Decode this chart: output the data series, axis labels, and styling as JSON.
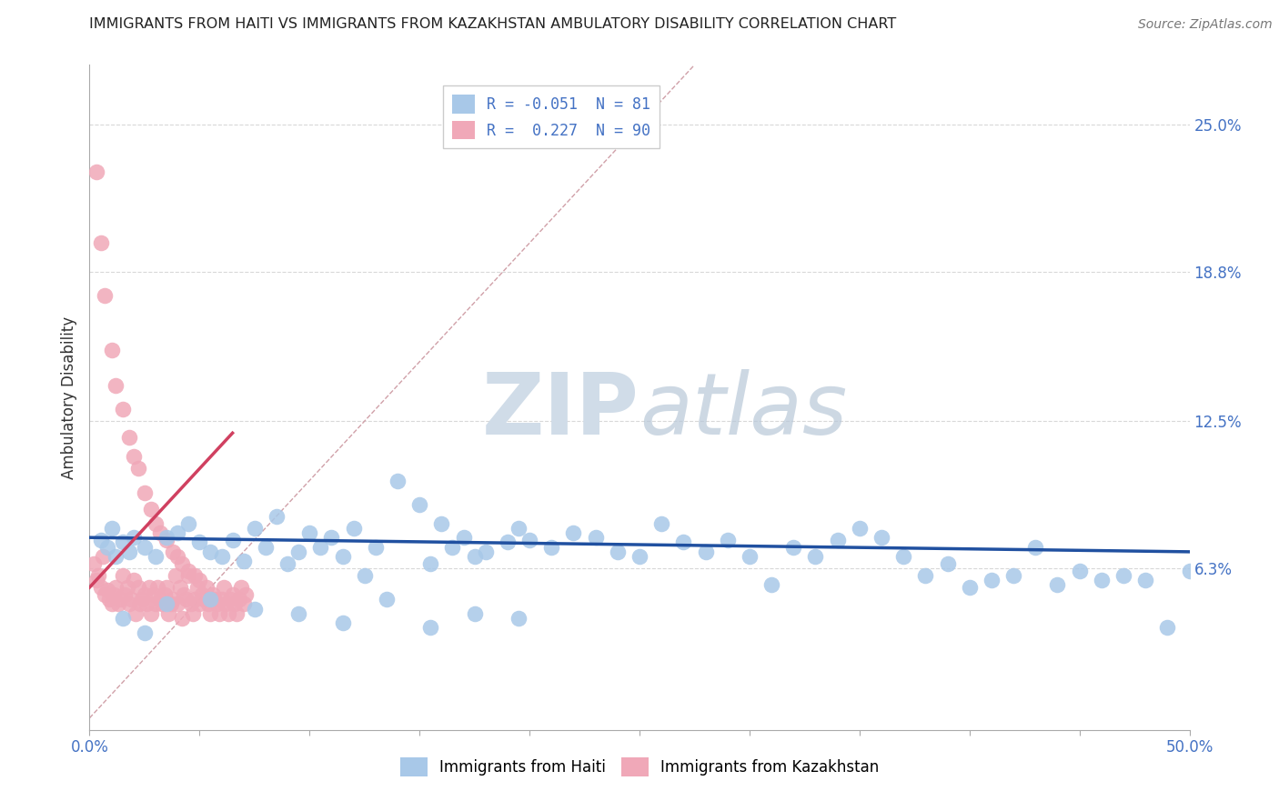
{
  "title": "IMMIGRANTS FROM HAITI VS IMMIGRANTS FROM KAZAKHSTAN AMBULATORY DISABILITY CORRELATION CHART",
  "source": "Source: ZipAtlas.com",
  "xlabel_haiti": "Immigrants from Haiti",
  "xlabel_kazakhstan": "Immigrants from Kazakhstan",
  "ylabel": "Ambulatory Disability",
  "xlim": [
    0.0,
    0.5
  ],
  "ylim": [
    -0.005,
    0.275
  ],
  "xtick_positions": [
    0.0,
    0.05,
    0.1,
    0.15,
    0.2,
    0.25,
    0.3,
    0.35,
    0.4,
    0.45,
    0.5
  ],
  "xtick_labels_show": {
    "0.0": "0.0%",
    "0.5": "50.0%"
  },
  "yticks_right": [
    0.063,
    0.125,
    0.188,
    0.25
  ],
  "ytick_right_labels": [
    "6.3%",
    "12.5%",
    "18.8%",
    "25.0%"
  ],
  "haiti_R": -0.051,
  "haiti_N": 81,
  "kazakhstan_R": 0.227,
  "kazakhstan_N": 90,
  "haiti_color": "#a8c8e8",
  "haiti_edge_color": "#6090c0",
  "kazakhstan_color": "#f0a8b8",
  "kazakhstan_edge_color": "#d06080",
  "haiti_trend_color": "#2050a0",
  "kazakhstan_trend_color": "#d04060",
  "background_color": "#ffffff",
  "grid_color": "#d8d8d8",
  "watermark_color": "#d0dce8",
  "diagonal_line_color": "#d0a0a8",
  "haiti_scatter_x": [
    0.005,
    0.008,
    0.01,
    0.012,
    0.015,
    0.018,
    0.02,
    0.025,
    0.03,
    0.035,
    0.04,
    0.045,
    0.05,
    0.055,
    0.06,
    0.065,
    0.07,
    0.075,
    0.08,
    0.085,
    0.09,
    0.095,
    0.1,
    0.105,
    0.11,
    0.115,
    0.12,
    0.125,
    0.13,
    0.14,
    0.15,
    0.155,
    0.16,
    0.165,
    0.17,
    0.175,
    0.18,
    0.19,
    0.195,
    0.2,
    0.21,
    0.22,
    0.23,
    0.24,
    0.25,
    0.26,
    0.27,
    0.28,
    0.29,
    0.3,
    0.31,
    0.32,
    0.33,
    0.34,
    0.35,
    0.36,
    0.37,
    0.38,
    0.39,
    0.4,
    0.41,
    0.42,
    0.43,
    0.44,
    0.45,
    0.46,
    0.47,
    0.48,
    0.49,
    0.5,
    0.015,
    0.025,
    0.035,
    0.055,
    0.075,
    0.095,
    0.115,
    0.135,
    0.155,
    0.175,
    0.195
  ],
  "haiti_scatter_y": [
    0.075,
    0.072,
    0.08,
    0.068,
    0.074,
    0.07,
    0.076,
    0.072,
    0.068,
    0.076,
    0.078,
    0.082,
    0.074,
    0.07,
    0.068,
    0.075,
    0.066,
    0.08,
    0.072,
    0.085,
    0.065,
    0.07,
    0.078,
    0.072,
    0.076,
    0.068,
    0.08,
    0.06,
    0.072,
    0.1,
    0.09,
    0.065,
    0.082,
    0.072,
    0.076,
    0.068,
    0.07,
    0.074,
    0.08,
    0.075,
    0.072,
    0.078,
    0.076,
    0.07,
    0.068,
    0.082,
    0.074,
    0.07,
    0.075,
    0.068,
    0.056,
    0.072,
    0.068,
    0.075,
    0.08,
    0.076,
    0.068,
    0.06,
    0.065,
    0.055,
    0.058,
    0.06,
    0.072,
    0.056,
    0.062,
    0.058,
    0.06,
    0.058,
    0.038,
    0.062,
    0.042,
    0.036,
    0.048,
    0.05,
    0.046,
    0.044,
    0.04,
    0.05,
    0.038,
    0.044,
    0.042
  ],
  "kazakhstan_scatter_x": [
    0.002,
    0.003,
    0.004,
    0.005,
    0.006,
    0.007,
    0.008,
    0.009,
    0.01,
    0.011,
    0.012,
    0.013,
    0.014,
    0.015,
    0.016,
    0.017,
    0.018,
    0.019,
    0.02,
    0.021,
    0.022,
    0.023,
    0.024,
    0.025,
    0.026,
    0.027,
    0.028,
    0.029,
    0.03,
    0.031,
    0.032,
    0.033,
    0.034,
    0.035,
    0.036,
    0.037,
    0.038,
    0.039,
    0.04,
    0.041,
    0.042,
    0.043,
    0.044,
    0.045,
    0.046,
    0.047,
    0.048,
    0.049,
    0.05,
    0.051,
    0.052,
    0.053,
    0.054,
    0.055,
    0.056,
    0.057,
    0.058,
    0.059,
    0.06,
    0.061,
    0.062,
    0.063,
    0.064,
    0.065,
    0.066,
    0.067,
    0.068,
    0.069,
    0.07,
    0.071,
    0.003,
    0.005,
    0.007,
    0.01,
    0.012,
    0.015,
    0.018,
    0.02,
    0.022,
    0.025,
    0.028,
    0.03,
    0.032,
    0.035,
    0.038,
    0.04,
    0.042,
    0.045,
    0.048,
    0.05
  ],
  "kazakhstan_scatter_y": [
    0.065,
    0.058,
    0.06,
    0.055,
    0.068,
    0.052,
    0.054,
    0.05,
    0.048,
    0.052,
    0.055,
    0.048,
    0.05,
    0.06,
    0.052,
    0.055,
    0.048,
    0.05,
    0.058,
    0.044,
    0.055,
    0.048,
    0.05,
    0.052,
    0.048,
    0.055,
    0.044,
    0.052,
    0.048,
    0.055,
    0.05,
    0.048,
    0.052,
    0.055,
    0.044,
    0.048,
    0.05,
    0.06,
    0.048,
    0.055,
    0.042,
    0.052,
    0.05,
    0.06,
    0.048,
    0.044,
    0.05,
    0.055,
    0.048,
    0.052,
    0.05,
    0.055,
    0.048,
    0.044,
    0.052,
    0.05,
    0.048,
    0.044,
    0.05,
    0.055,
    0.048,
    0.044,
    0.05,
    0.052,
    0.048,
    0.044,
    0.05,
    0.055,
    0.048,
    0.052,
    0.23,
    0.2,
    0.178,
    0.155,
    0.14,
    0.13,
    0.118,
    0.11,
    0.105,
    0.095,
    0.088,
    0.082,
    0.078,
    0.075,
    0.07,
    0.068,
    0.065,
    0.062,
    0.06,
    0.058
  ]
}
